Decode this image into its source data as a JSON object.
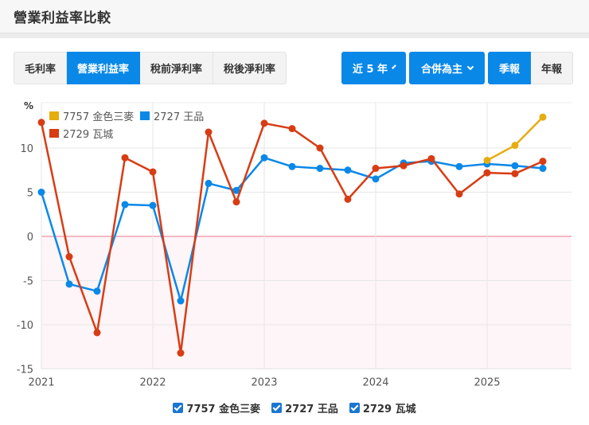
{
  "header": {
    "title": "營業利益率比較"
  },
  "metric_tabs": [
    {
      "label": "毛利率",
      "active": false
    },
    {
      "label": "營業利益率",
      "active": true
    },
    {
      "label": "稅前淨利率",
      "active": false
    },
    {
      "label": "稅後淨利率",
      "active": false
    }
  ],
  "controls": {
    "period_dropdown": "近 5 年",
    "basis_dropdown": "合併為主",
    "quarterly": "季報",
    "annual": "年報"
  },
  "bottom_legend": [
    {
      "label": "7757 金色三麥",
      "checked": true
    },
    {
      "label": "2727 王品",
      "checked": true
    },
    {
      "label": "2729 瓦城",
      "checked": true
    }
  ],
  "chart_data": {
    "type": "line",
    "title": "營業利益率比較",
    "ylabel": "%",
    "xlabel": "",
    "ylim": [
      -15,
      15
    ],
    "yticks": [
      10,
      5,
      0,
      -5,
      -10,
      -15
    ],
    "xticks": [
      "2021",
      "2022",
      "2023",
      "2024",
      "2025"
    ],
    "grid": true,
    "legend_position": "top-left",
    "x": [
      "2021Q1",
      "2021Q2",
      "2021Q3",
      "2021Q4",
      "2022Q1",
      "2022Q2",
      "2022Q3",
      "2022Q4",
      "2023Q1",
      "2023Q2",
      "2023Q3",
      "2023Q4",
      "2024Q1",
      "2024Q2",
      "2024Q3",
      "2024Q4",
      "2025Q1",
      "2025Q2",
      "2025Q3"
    ],
    "series": [
      {
        "name": "7757 金色三麥",
        "color": "#e6ad0f",
        "values": [
          null,
          null,
          null,
          null,
          null,
          null,
          null,
          null,
          null,
          null,
          null,
          null,
          null,
          null,
          null,
          null,
          8.6,
          10.3,
          13.5
        ]
      },
      {
        "name": "2727 王品",
        "color": "#0a88e8",
        "values": [
          5.0,
          -5.4,
          -6.2,
          3.6,
          3.5,
          -7.3,
          6.0,
          5.2,
          8.9,
          7.9,
          7.7,
          7.5,
          6.5,
          8.3,
          8.5,
          7.9,
          8.2,
          8.0,
          7.7
        ]
      },
      {
        "name": "2729 瓦城",
        "color": "#d83c14",
        "values": [
          12.9,
          -2.3,
          -10.9,
          8.9,
          7.3,
          -13.2,
          11.8,
          3.9,
          12.8,
          12.2,
          10.0,
          4.2,
          7.7,
          8.0,
          8.8,
          4.8,
          7.2,
          7.1,
          8.5
        ]
      }
    ]
  }
}
